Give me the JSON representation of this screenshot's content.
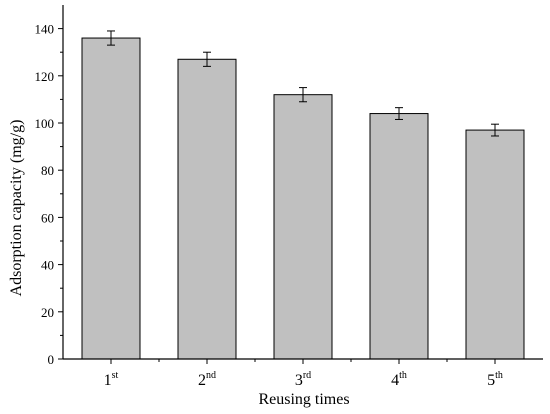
{
  "chart_data": {
    "type": "bar",
    "categories": [
      {
        "base": "1",
        "sup": "st"
      },
      {
        "base": "2",
        "sup": "nd"
      },
      {
        "base": "3",
        "sup": "rd"
      },
      {
        "base": "4",
        "sup": "th"
      },
      {
        "base": "5",
        "sup": "th"
      }
    ],
    "values": [
      136,
      127,
      112,
      104,
      97
    ],
    "errors": [
      3,
      3,
      3,
      2.5,
      2.5
    ],
    "xlabel": "Reusing times",
    "ylabel": "Adsorption capacity (mg/g)",
    "ylim": [
      0,
      150
    ],
    "yticks": [
      0,
      20,
      40,
      60,
      80,
      100,
      120,
      140
    ],
    "grid": false,
    "colors": {
      "bar_fill": "#c0c0c0",
      "bar_stroke": "#000000",
      "axis": "#000000"
    }
  }
}
